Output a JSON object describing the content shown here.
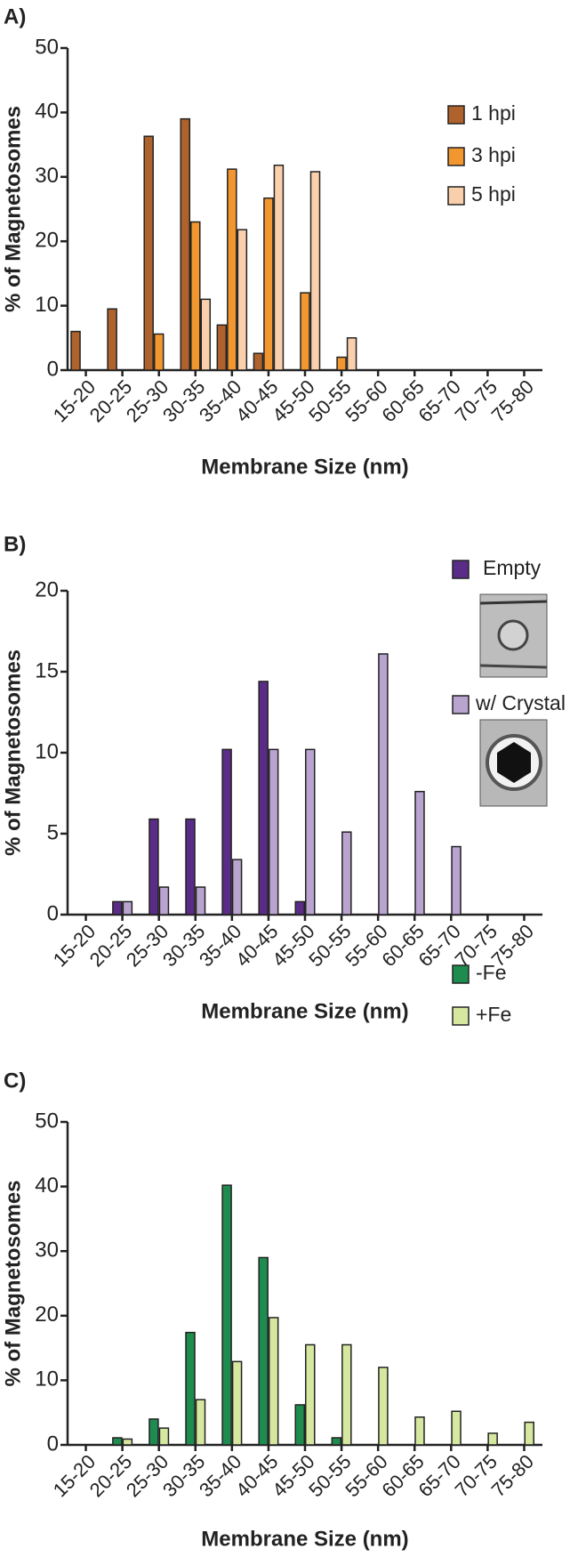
{
  "chart_data": [
    {
      "type": "bar",
      "title": "A)",
      "ylabel": "% of Magnetosomes",
      "xlabel": "Membrane Size (nm)",
      "categories": [
        "15-20",
        "20-25",
        "25-30",
        "30-35",
        "35-40",
        "40-45",
        "45-50",
        "50-55",
        "55-60",
        "60-65",
        "65-70",
        "70-75",
        "75-80"
      ],
      "series": [
        {
          "name": "1 hpi",
          "color": "#b0622c",
          "values": [
            6,
            9.5,
            36.3,
            39,
            7,
            2.6,
            0,
            0,
            0,
            0,
            0,
            0,
            0
          ]
        },
        {
          "name": "3 hpi",
          "color": "#f2962f",
          "values": [
            0,
            0,
            5.6,
            23,
            31.2,
            26.7,
            12,
            2,
            0,
            0,
            0,
            0,
            0
          ]
        },
        {
          "name": "5 hpi",
          "color": "#f9d0ab",
          "values": [
            0,
            0,
            0,
            11,
            21.8,
            31.8,
            30.8,
            5,
            0,
            0,
            0,
            0,
            0
          ]
        }
      ],
      "ylim": [
        0,
        50
      ],
      "yticks": [
        0,
        10,
        20,
        30,
        40,
        50
      ]
    },
    {
      "type": "bar",
      "title": "B)",
      "ylabel": "% of Magnetosomes",
      "xlabel": "Membrane Size (nm)",
      "categories": [
        "15-20",
        "20-25",
        "25-30",
        "30-35",
        "35-40",
        "40-45",
        "45-50",
        "50-55",
        "55-60",
        "60-65",
        "65-70",
        "70-75",
        "75-80"
      ],
      "series": [
        {
          "name": "Empty",
          "color": "#5b2c87",
          "values": [
            0,
            0.8,
            5.9,
            5.9,
            10.2,
            14.4,
            0.8,
            0,
            0,
            0,
            0,
            0,
            0
          ]
        },
        {
          "name": "w/ Crystal",
          "color": "#b9a4d0",
          "values": [
            0,
            0.8,
            1.7,
            1.7,
            3.4,
            10.2,
            10.2,
            5.1,
            16.1,
            7.6,
            4.2,
            0,
            0
          ]
        }
      ],
      "ylim": [
        0,
        20
      ],
      "yticks": [
        0,
        5,
        10,
        15,
        20
      ]
    },
    {
      "type": "bar",
      "title": "C)",
      "ylabel": "% of Magnetosomes",
      "xlabel": "Membrane Size (nm)",
      "categories": [
        "15-20",
        "20-25",
        "25-30",
        "30-35",
        "35-40",
        "40-45",
        "45-50",
        "50-55",
        "55-60",
        "60-65",
        "65-70",
        "70-75",
        "75-80"
      ],
      "series": [
        {
          "name": "-Fe",
          "color": "#1f8c4f",
          "values": [
            0,
            1.1,
            4,
            17.4,
            40.2,
            29,
            6.2,
            1.1,
            0,
            0,
            0,
            0,
            0
          ]
        },
        {
          "name": "+Fe",
          "color": "#d6e8a0",
          "values": [
            0,
            0.9,
            2.6,
            7,
            12.9,
            19.7,
            15.5,
            15.5,
            12,
            4.3,
            5.2,
            1.8,
            3.5
          ]
        }
      ],
      "ylim": [
        0,
        50
      ],
      "yticks": [
        0,
        10,
        20,
        30,
        40,
        50
      ]
    }
  ]
}
